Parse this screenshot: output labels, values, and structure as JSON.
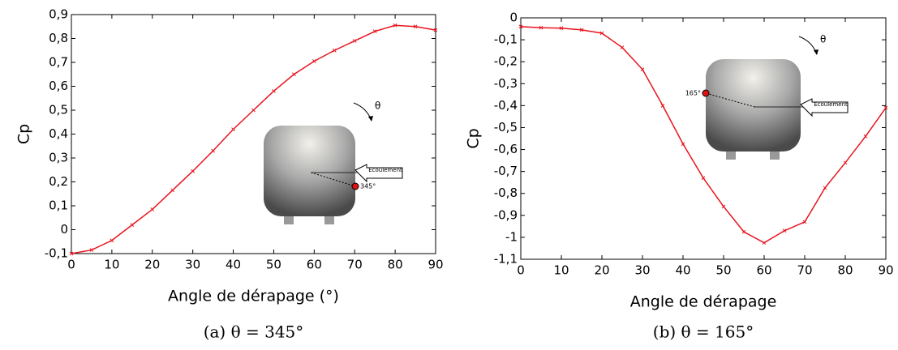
{
  "chart_data": [
    {
      "type": "line",
      "xlabel": "Angle de dérapage (°)",
      "ylabel": "Cp",
      "caption": "(a) θ = 345°",
      "annotations": [
        "θ",
        "Ecoulement",
        "345°"
      ],
      "x": [
        0,
        5,
        10,
        15,
        20,
        25,
        30,
        35,
        40,
        45,
        50,
        55,
        60,
        65,
        70,
        75,
        80,
        85,
        90
      ],
      "series": [
        {
          "color": "#e8141e",
          "values": [
            -0.1,
            -0.085,
            -0.045,
            0.02,
            0.085,
            0.165,
            0.245,
            0.33,
            0.42,
            0.5,
            0.58,
            0.65,
            0.705,
            0.75,
            0.79,
            0.83,
            0.855,
            0.85,
            0.835
          ]
        }
      ],
      "xlim": [
        0,
        90
      ],
      "xticks": [
        0,
        10,
        20,
        30,
        40,
        50,
        60,
        70,
        80,
        90
      ],
      "ylim": [
        -0.1,
        0.9
      ],
      "yticks": [
        {
          "value": -0.1,
          "label": "-0,1"
        },
        0,
        {
          "value": 0.1,
          "label": "0,1"
        },
        {
          "value": 0.2,
          "label": "0,2"
        },
        {
          "value": 0.3,
          "label": "0,3"
        },
        {
          "value": 0.4,
          "label": "0,4"
        },
        {
          "value": 0.5,
          "label": "0,5"
        },
        {
          "value": 0.6,
          "label": "0,6"
        },
        {
          "value": 0.7,
          "label": "0,7"
        },
        {
          "value": 0.8,
          "label": "0,8"
        },
        {
          "value": 0.9,
          "label": "0,9"
        }
      ]
    },
    {
      "type": "line",
      "xlabel": "Angle de dérapage",
      "ylabel": "Cp",
      "caption": "(b) θ = 165°",
      "annotations": [
        "θ",
        "Ecoulement",
        "165°"
      ],
      "x": [
        0,
        5,
        10,
        15,
        20,
        25,
        30,
        35,
        40,
        45,
        50,
        55,
        60,
        65,
        70,
        75,
        80,
        85,
        90
      ],
      "series": [
        {
          "color": "#e8141e",
          "values": [
            -0.04,
            -0.045,
            -0.047,
            -0.055,
            -0.07,
            -0.135,
            -0.235,
            -0.4,
            -0.575,
            -0.73,
            -0.86,
            -0.975,
            -1.025,
            -0.97,
            -0.93,
            -0.775,
            -0.66,
            -0.54,
            -0.41
          ]
        }
      ],
      "xlim": [
        0,
        90
      ],
      "xticks": [
        0,
        10,
        20,
        30,
        40,
        50,
        60,
        70,
        80,
        90
      ],
      "ylim": [
        -1.1,
        0
      ],
      "yticks": [
        {
          "value": -1.1,
          "label": "-1,1"
        },
        {
          "value": -1,
          "label": "-1"
        },
        {
          "value": -0.9,
          "label": "-0,9"
        },
        {
          "value": -0.8,
          "label": "-0,8"
        },
        {
          "value": -0.7,
          "label": "-0,7"
        },
        {
          "value": -0.6,
          "label": "-0,6"
        },
        {
          "value": -0.5,
          "label": "-0,5"
        },
        {
          "value": -0.4,
          "label": "-0,4"
        },
        {
          "value": -0.3,
          "label": "-0,3"
        },
        {
          "value": -0.2,
          "label": "-0,2"
        },
        {
          "value": -0.1,
          "label": "-0,1"
        },
        0
      ]
    }
  ]
}
